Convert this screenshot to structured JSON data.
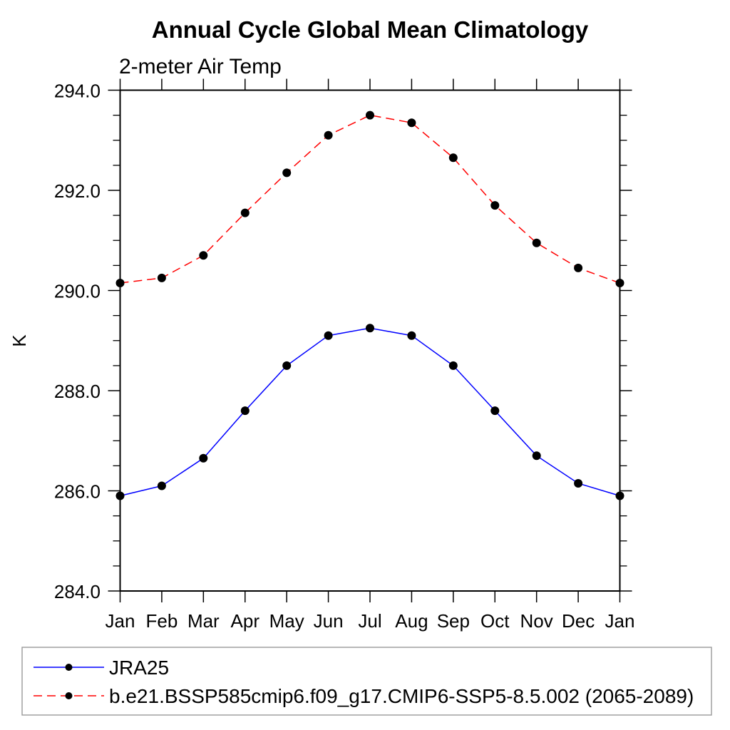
{
  "chart_data": {
    "type": "line",
    "title": "Annual Cycle Global Mean Climatology",
    "subtitle": "2-meter Air Temp",
    "ylabel": "K",
    "xlabel": "",
    "categories": [
      "Jan",
      "Feb",
      "Mar",
      "Apr",
      "May",
      "Jun",
      "Jul",
      "Aug",
      "Sep",
      "Oct",
      "Nov",
      "Dec",
      "Jan"
    ],
    "ylim": [
      284.0,
      294.0
    ],
    "yticks_major": [
      284.0,
      286.0,
      288.0,
      290.0,
      292.0,
      294.0
    ],
    "ytick_labels": [
      "284.0",
      "286.0",
      "288.0",
      "290.0",
      "292.0",
      "294.0"
    ],
    "yminor_step": 0.5,
    "grid": false,
    "legend_position": "bottom",
    "axis_color": "#000000",
    "legend_border_color": "#999999",
    "marker_shape": "filled-circle",
    "series": [
      {
        "name": "JRA25",
        "color": "#0000ff",
        "line_style": "solid",
        "marker_color": "#000000",
        "values": [
          285.9,
          286.1,
          286.65,
          287.6,
          288.5,
          289.1,
          289.25,
          289.1,
          288.5,
          287.6,
          286.7,
          286.15,
          285.9
        ]
      },
      {
        "name": "b.e21.BSSP585cmip6.f09_g17.CMIP6-SSP5-8.5.002 (2065-2089)",
        "color": "#ff0000",
        "line_style": "dashed",
        "marker_color": "#000000",
        "values": [
          290.15,
          290.25,
          290.7,
          291.55,
          292.35,
          293.1,
          293.5,
          293.35,
          292.65,
          291.7,
          290.95,
          290.45,
          290.15
        ]
      }
    ]
  }
}
